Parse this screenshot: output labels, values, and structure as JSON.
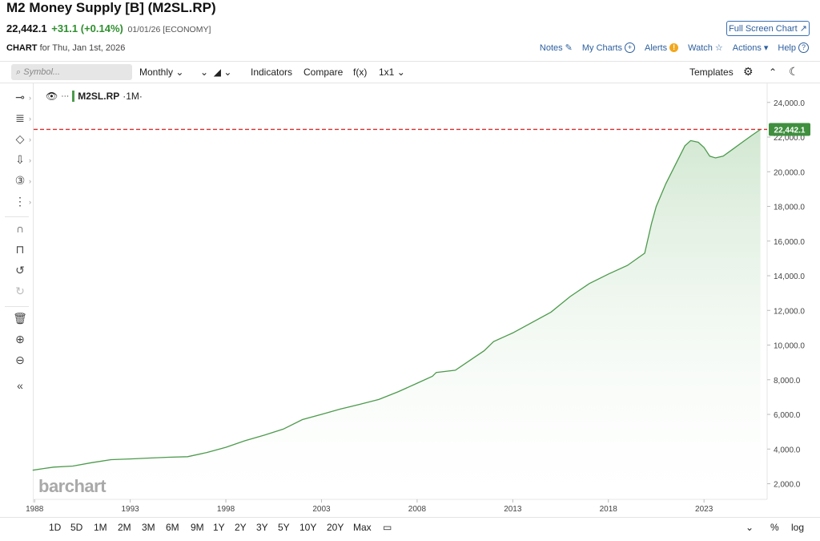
{
  "header": {
    "title": "M2 Money Supply [B] (M2SL.RP)",
    "last": "22,442.1",
    "change": "+31.1 (+0.14%)",
    "meta": "01/01/26 [ECONOMY]",
    "full_screen": "Full Screen Chart",
    "chart_label": "CHART",
    "chart_for": "for Thu, Jan 1st, 2026"
  },
  "links": {
    "notes": "Notes",
    "my_charts": "My Charts",
    "alerts": "Alerts",
    "watch": "Watch",
    "actions": "Actions",
    "help": "Help"
  },
  "toolbar": {
    "search_placeholder": "Symbol...",
    "period": "Monthly",
    "indicators": "Indicators",
    "compare": "Compare",
    "fx": "f(x)",
    "layout": "1x1",
    "templates": "Templates"
  },
  "legend": {
    "symbol": "M2SL.RP",
    "interval": "·1M·"
  },
  "watermark": "barchart",
  "ranges": [
    "1D",
    "5D",
    "1M",
    "2M",
    "3M",
    "6M",
    "9M",
    "1Y",
    "2Y",
    "3Y",
    "5Y",
    "10Y",
    "20Y",
    "Max"
  ],
  "bottom_right": {
    "percent": "%",
    "log": "log"
  },
  "colors": {
    "line": "#4c9a4c",
    "fill_top": "#cfe6cf",
    "ref_line": "#d32f2f",
    "price_tag": "#3f8f3f",
    "link": "#2c5f9e"
  },
  "chart_data": {
    "type": "area",
    "x": [
      1987.9,
      1988.5,
      1989,
      1990,
      1991,
      1992,
      1993,
      1994,
      1995,
      1996,
      1997,
      1998,
      1999,
      2000,
      2001,
      2002,
      2003,
      2004,
      2005,
      2006,
      2007,
      2008,
      2008.8,
      2009,
      2010,
      2011,
      2011.5,
      2012,
      2013,
      2014,
      2015,
      2016,
      2017,
      2018,
      2019,
      2019.9,
      2020.25,
      2020.5,
      2021,
      2021.5,
      2022,
      2022.3,
      2022.7,
      2023,
      2023.3,
      2023.6,
      2024,
      2024.5,
      2025,
      2025.5,
      2025.95
    ],
    "y": [
      2780,
      2880,
      2960,
      3020,
      3220,
      3390,
      3430,
      3480,
      3530,
      3560,
      3800,
      4100,
      4480,
      4800,
      5150,
      5700,
      6000,
      6310,
      6580,
      6860,
      7300,
      7800,
      8200,
      8420,
      8550,
      9300,
      9670,
      10200,
      10700,
      11300,
      11900,
      12800,
      13550,
      14100,
      14600,
      15300,
      17000,
      18000,
      19300,
      20400,
      21500,
      21800,
      21700,
      21400,
      20900,
      20800,
      20900,
      21300,
      21700,
      22100,
      22442.1
    ],
    "y_ticks": [
      2000,
      4000,
      6000,
      8000,
      10000,
      12000,
      14000,
      16000,
      18000,
      20000,
      22000,
      24000
    ],
    "y_tick_labels": [
      "2,000.0",
      "4,000.0",
      "6,000.0",
      "8,000.0",
      "10,000.0",
      "12,000.0",
      "14,000.0",
      "16,000.0",
      "18,000.0",
      "20,000.0",
      "22,000.0",
      "24,000.0"
    ],
    "x_ticks": [
      1988,
      1993,
      1998,
      2003,
      2008,
      2013,
      2018,
      2023
    ],
    "x_tick_labels": [
      "1988",
      "1993",
      "1998",
      "2003",
      "2008",
      "2013",
      "2018",
      "2023"
    ],
    "xlim": [
      1987.95,
      2026.3
    ],
    "ylim": [
      1100,
      25100
    ],
    "last_value": 22442.1,
    "last_label": "22,442.1"
  }
}
